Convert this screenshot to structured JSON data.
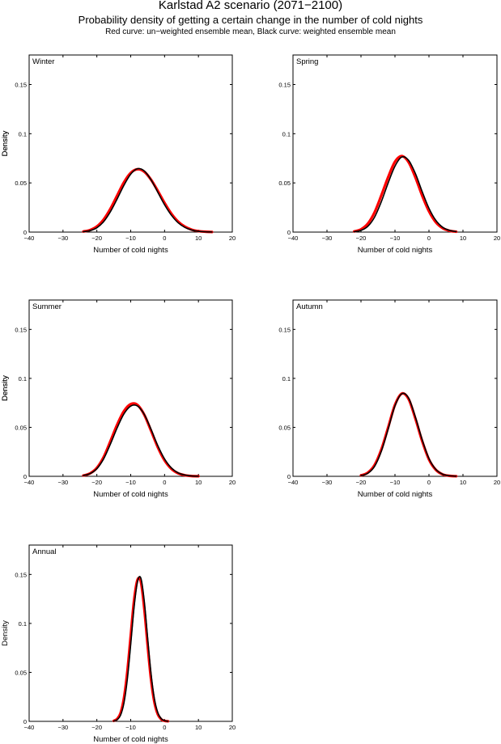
{
  "header": {
    "title": "Karlstad A2 scenario (2071−2100)",
    "subtitle": "Probability density of getting a certain change in the number of cold nights",
    "note": "Red curve: un−weighted ensemble mean, Black curve: weighted ensemble mean"
  },
  "colors": {
    "unweighted": "#ff0000",
    "weighted": "#000000"
  },
  "chart_data": [
    {
      "type": "line",
      "panel": "Winter",
      "xlabel": "Number of cold nights",
      "ylabel": "Density",
      "xlim": [
        -40,
        20
      ],
      "ylim": [
        0,
        0.18
      ],
      "xticks": [
        -40,
        -30,
        -20,
        -10,
        0,
        10,
        20
      ],
      "yticks": [
        0,
        0.05,
        0.1,
        0.15
      ],
      "series": [
        {
          "name": "Red curve: un-weighted ensemble mean",
          "color": "#ff0000",
          "x": [
            -24,
            -22,
            -20,
            -18,
            -16,
            -14,
            -12,
            -10,
            -8,
            -6,
            -4,
            -2,
            0,
            2,
            4,
            6,
            8,
            10,
            12,
            14
          ],
          "y": [
            0.0006,
            0.0021,
            0.0057,
            0.0128,
            0.0237,
            0.0372,
            0.0506,
            0.0602,
            0.0639,
            0.0614,
            0.0533,
            0.0419,
            0.0296,
            0.0188,
            0.0107,
            0.0055,
            0.0025,
            0.001,
            0.0004,
            0.0001
          ]
        },
        {
          "name": "Black curve: weighted ensemble mean",
          "color": "#000000",
          "x": [
            -24,
            -22,
            -20,
            -18,
            -16,
            -14,
            -12,
            -10,
            -8,
            -6,
            -4,
            -2,
            0,
            2,
            4,
            6,
            8,
            10,
            12,
            14
          ],
          "y": [
            0.0004,
            0.0015,
            0.0044,
            0.0106,
            0.0207,
            0.0337,
            0.0476,
            0.0589,
            0.0644,
            0.0622,
            0.0532,
            0.0405,
            0.0278,
            0.0172,
            0.0095,
            0.0048,
            0.0021,
            0.0008,
            0.0003,
            0.0001
          ]
        }
      ]
    },
    {
      "type": "line",
      "panel": "Spring",
      "xlabel": "Number of cold nights",
      "ylabel": "Density",
      "xlim": [
        -40,
        20
      ],
      "ylim": [
        0,
        0.18
      ],
      "xticks": [
        -40,
        -30,
        -20,
        -10,
        0,
        10,
        20
      ],
      "yticks": [
        0,
        0.05,
        0.1,
        0.15
      ],
      "series": [
        {
          "name": "Red curve: un-weighted ensemble mean",
          "color": "#ff0000",
          "x": [
            -22,
            -20,
            -18,
            -16,
            -14,
            -12,
            -10,
            -8,
            -6,
            -4,
            -2,
            0,
            2,
            4,
            6,
            8
          ],
          "y": [
            0.0007,
            0.0028,
            0.0085,
            0.0201,
            0.0374,
            0.0559,
            0.0715,
            0.0773,
            0.0711,
            0.0557,
            0.0371,
            0.0211,
            0.0101,
            0.0041,
            0.0014,
            0.0004
          ]
        },
        {
          "name": "Black curve: weighted ensemble mean",
          "color": "#000000",
          "x": [
            -22,
            -20,
            -18,
            -16,
            -14,
            -12,
            -10,
            -8,
            -6,
            -4,
            -2,
            0,
            2,
            4,
            6,
            8
          ],
          "y": [
            0.0004,
            0.0017,
            0.0058,
            0.0152,
            0.031,
            0.05,
            0.067,
            0.0763,
            0.073,
            0.0596,
            0.0412,
            0.0242,
            0.012,
            0.005,
            0.0018,
            0.0005
          ]
        }
      ]
    },
    {
      "type": "line",
      "panel": "Summer",
      "xlabel": "Number of cold nights",
      "ylabel": "Density",
      "xlim": [
        -40,
        20
      ],
      "ylim": [
        0,
        0.18
      ],
      "xticks": [
        -40,
        -30,
        -20,
        -10,
        0,
        10,
        20
      ],
      "yticks": [
        0,
        0.05,
        0.1,
        0.15
      ],
      "series": [
        {
          "name": "Red curve: un-weighted ensemble mean",
          "color": "#ff0000",
          "x": [
            -24,
            -22,
            -20,
            -18,
            -16,
            -14,
            -12,
            -10,
            -8,
            -6,
            -4,
            -2,
            0,
            2,
            4,
            6,
            8,
            10
          ],
          "y": [
            0.0008,
            0.003,
            0.0086,
            0.0196,
            0.0358,
            0.0528,
            0.0666,
            0.0737,
            0.0729,
            0.0629,
            0.0466,
            0.0297,
            0.0163,
            0.0077,
            0.0031,
            0.0011,
            0.0003,
            0.0001
          ]
        },
        {
          "name": "Black curve: weighted ensemble mean",
          "color": "#000000",
          "x": [
            -24,
            -22,
            -20,
            -18,
            -16,
            -14,
            -12,
            -10,
            -8,
            -6,
            -4,
            -2,
            0,
            2,
            4,
            6,
            8,
            10
          ],
          "y": [
            0.0008,
            0.0028,
            0.0078,
            0.0178,
            0.0329,
            0.0495,
            0.0637,
            0.0717,
            0.0718,
            0.0633,
            0.048,
            0.0313,
            0.0177,
            0.0086,
            0.0035,
            0.0013,
            0.0004,
            0.0001
          ]
        }
      ]
    },
    {
      "type": "line",
      "panel": "Autumn",
      "xlabel": "Number of cold nights",
      "ylabel": "Density",
      "xlim": [
        -40,
        20
      ],
      "ylim": [
        0,
        0.18
      ],
      "xticks": [
        -40,
        -30,
        -20,
        -10,
        0,
        10,
        20
      ],
      "yticks": [
        0,
        0.05,
        0.1,
        0.15
      ],
      "series": [
        {
          "name": "Red curve: un-weighted ensemble mean",
          "color": "#ff0000",
          "x": [
            -20,
            -18,
            -16,
            -14,
            -12,
            -10,
            -8,
            -6,
            -4,
            -2,
            0,
            2,
            4,
            6,
            8
          ],
          "y": [
            0.0009,
            0.0037,
            0.0115,
            0.0275,
            0.05,
            0.073,
            0.0845,
            0.079,
            0.059,
            0.036,
            0.0172,
            0.0067,
            0.002,
            0.0005,
            0.0001
          ]
        },
        {
          "name": "Black curve: weighted ensemble mean",
          "color": "#000000",
          "x": [
            -20,
            -18,
            -16,
            -14,
            -12,
            -10,
            -8,
            -6,
            -4,
            -2,
            0,
            2,
            4,
            6,
            8
          ],
          "y": [
            0.0007,
            0.0031,
            0.0102,
            0.0257,
            0.0483,
            0.072,
            0.0843,
            0.08,
            0.0606,
            0.0374,
            0.0182,
            0.0071,
            0.0022,
            0.0006,
            0.0001
          ]
        }
      ]
    },
    {
      "type": "line",
      "panel": "Annual",
      "xlabel": "Number of cold nights",
      "ylabel": "Density",
      "xlim": [
        -40,
        20
      ],
      "ylim": [
        0,
        0.18
      ],
      "xticks": [
        -40,
        -30,
        -20,
        -10,
        0,
        10,
        20
      ],
      "yticks": [
        0,
        0.05,
        0.1,
        0.15
      ],
      "series": [
        {
          "name": "Red curve: un-weighted ensemble mean",
          "color": "#ff0000",
          "x": [
            -15,
            -14,
            -13,
            -12,
            -11,
            -10,
            -9,
            -8,
            -7,
            -6,
            -5,
            -4,
            -3,
            -2,
            -1,
            0,
            1
          ],
          "y": [
            0.0005,
            0.0025,
            0.0085,
            0.0237,
            0.0508,
            0.0875,
            0.1238,
            0.1444,
            0.1424,
            0.1153,
            0.0775,
            0.0428,
            0.0194,
            0.0072,
            0.0022,
            0.0005,
            0.0001
          ]
        },
        {
          "name": "Black curve: weighted ensemble mean",
          "color": "#000000",
          "x": [
            -15,
            -14,
            -13,
            -12,
            -11,
            -10,
            -9,
            -8,
            -7,
            -6,
            -5,
            -4,
            -3,
            -2,
            -1,
            0,
            1
          ],
          "y": [
            0.0003,
            0.0017,
            0.0063,
            0.0187,
            0.0429,
            0.0785,
            0.1166,
            0.1427,
            0.1462,
            0.1229,
            0.0851,
            0.0487,
            0.023,
            0.0089,
            0.0028,
            0.0007,
            0.0001
          ]
        }
      ]
    }
  ]
}
